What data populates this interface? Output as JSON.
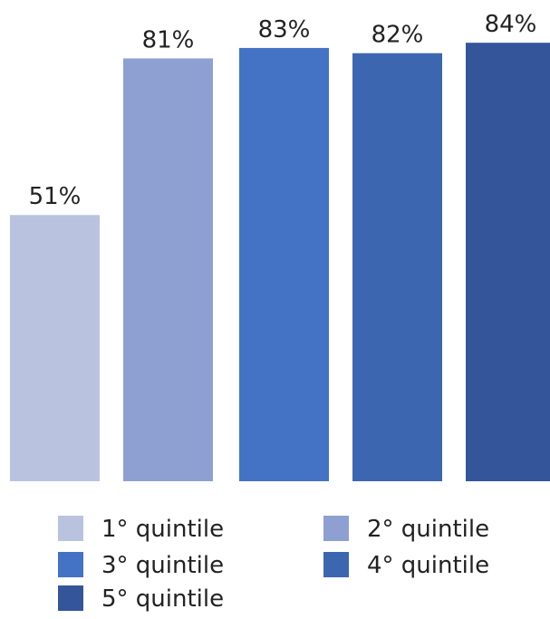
{
  "chart_data": {
    "type": "bar",
    "categories": [
      "1° quintile",
      "2° quintile",
      "3° quintile",
      "4° quintile",
      "5° quintile"
    ],
    "values": [
      51,
      81,
      83,
      82,
      84
    ],
    "data_labels": [
      "51%",
      "81%",
      "83%",
      "82%",
      "84%"
    ],
    "colors": [
      "#b9c3e0",
      "#8ea0d2",
      "#4472c4",
      "#3d66b0",
      "#34559a"
    ],
    "ylim": [
      0,
      100
    ],
    "unit": "%",
    "grid": false,
    "axes_visible": false,
    "legend": {
      "position": "bottom",
      "entries": [
        "1° quintile",
        "2° quintile",
        "3° quintile",
        "4° quintile",
        "5° quintile"
      ]
    }
  }
}
